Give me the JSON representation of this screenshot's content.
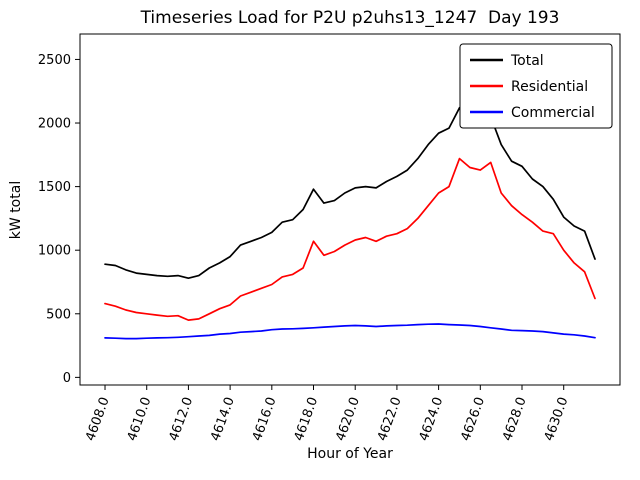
{
  "figure": {
    "background": "#ffffff"
  },
  "chart_data": {
    "type": "line",
    "title": "Timeseries Load for P2U p2uhs13_1247  Day 193",
    "xlabel": "Hour of Year",
    "ylabel": "kW total",
    "xlim": [
      4606.8,
      4632.7
    ],
    "ylim": [
      -60,
      2700
    ],
    "grid": false,
    "xticks": [
      4608,
      4610,
      4612,
      4614,
      4616,
      4618,
      4620,
      4622,
      4624,
      4626,
      4628,
      4630
    ],
    "xtick_labels": [
      "4608.0",
      "4610.0",
      "4612.0",
      "4614.0",
      "4616.0",
      "4618.0",
      "4620.0",
      "4622.0",
      "4624.0",
      "4626.0",
      "4628.0",
      "4630.0"
    ],
    "yticks": [
      0,
      500,
      1000,
      1500,
      2000,
      2500
    ],
    "ytick_labels": [
      "0",
      "500",
      "1000",
      "1500",
      "2000",
      "2500"
    ],
    "legend": {
      "position": "upper right",
      "entries": [
        {
          "label": "Total",
          "color": "#000000"
        },
        {
          "label": "Residential",
          "color": "#ff0000"
        },
        {
          "label": "Commercial",
          "color": "#0000ff"
        }
      ]
    },
    "x": [
      4608.0,
      4608.5,
      4609.0,
      4609.5,
      4610.0,
      4610.5,
      4611.0,
      4611.5,
      4612.0,
      4612.5,
      4613.0,
      4613.5,
      4614.0,
      4614.5,
      4615.0,
      4615.5,
      4616.0,
      4616.5,
      4617.0,
      4617.5,
      4618.0,
      4618.5,
      4619.0,
      4619.5,
      4620.0,
      4620.5,
      4621.0,
      4621.5,
      4622.0,
      4622.5,
      4623.0,
      4623.5,
      4624.0,
      4624.5,
      4625.0,
      4625.5,
      4626.0,
      4626.5,
      4627.0,
      4627.5,
      4628.0,
      4628.5,
      4629.0,
      4629.5,
      4630.0,
      4630.5,
      4631.0,
      4631.5
    ],
    "series": [
      {
        "name": "Total",
        "color": "#000000",
        "values": [
          890,
          880,
          845,
          820,
          810,
          800,
          795,
          800,
          780,
          800,
          860,
          900,
          950,
          1040,
          1070,
          1100,
          1140,
          1220,
          1240,
          1320,
          1480,
          1370,
          1390,
          1450,
          1490,
          1500,
          1490,
          1540,
          1580,
          1630,
          1720,
          1830,
          1920,
          1960,
          2120,
          2040,
          1980,
          2050,
          1830,
          1700,
          1660,
          1560,
          1500,
          1400,
          1260,
          1190,
          1150,
          930
        ]
      },
      {
        "name": "Residential",
        "color": "#ff0000",
        "values": [
          580,
          560,
          530,
          510,
          500,
          490,
          480,
          485,
          450,
          460,
          500,
          540,
          570,
          640,
          670,
          700,
          730,
          790,
          810,
          860,
          1070,
          960,
          990,
          1040,
          1080,
          1100,
          1070,
          1110,
          1130,
          1170,
          1250,
          1350,
          1450,
          1500,
          1720,
          1650,
          1630,
          1690,
          1450,
          1350,
          1280,
          1220,
          1150,
          1130,
          1000,
          900,
          830,
          620
        ]
      },
      {
        "name": "Commercial",
        "color": "#0000ff",
        "values": [
          310,
          308,
          305,
          305,
          308,
          310,
          312,
          315,
          320,
          325,
          330,
          340,
          345,
          355,
          360,
          365,
          375,
          380,
          382,
          385,
          390,
          395,
          400,
          405,
          408,
          405,
          400,
          405,
          408,
          410,
          415,
          418,
          420,
          415,
          412,
          408,
          400,
          390,
          380,
          370,
          368,
          365,
          360,
          350,
          340,
          335,
          325,
          312
        ]
      }
    ]
  }
}
